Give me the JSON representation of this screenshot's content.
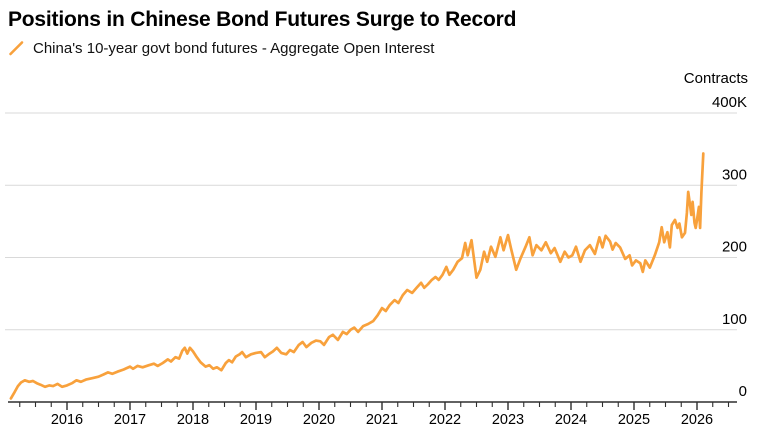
{
  "header": {
    "title": "Positions in Chinese Bond Futures Surge to Record"
  },
  "legend": {
    "label": "China's 10-year govt bond futures - Aggregate Open Interest",
    "mark_color": "#F8A13C"
  },
  "colors": {
    "line": "#F8A13C",
    "grid": "#D9D9D9",
    "axis": "#2E2E2E",
    "text": "#000000",
    "background": "#FFFFFF"
  },
  "chart_data": {
    "type": "line",
    "title": "Positions in Chinese Bond Futures Surge to Record",
    "unit_label": "Contracts",
    "ylabel": "Contracts",
    "y_range": [
      0,
      400
    ],
    "y_ticks": [
      {
        "value": 400,
        "label": "400K"
      },
      {
        "value": 300,
        "label": "300"
      },
      {
        "value": 200,
        "label": "200"
      },
      {
        "value": 100,
        "label": "100"
      },
      {
        "value": 0,
        "label": "0"
      }
    ],
    "x_year_labels": [
      "2016",
      "2017",
      "2018",
      "2019",
      "2020",
      "2021",
      "2022",
      "2023",
      "2024",
      "2025",
      "2026"
    ],
    "x_range_years": [
      2015.05,
      2026.6
    ],
    "grid": "horizontal-only",
    "legend_position": "top-left",
    "series": [
      {
        "name": "China's 10-year govt bond futures - Aggregate Open Interest",
        "color": "#F8A13C",
        "units": "thousands of contracts",
        "points": [
          [
            2015.11,
            5
          ],
          [
            2015.17,
            14
          ],
          [
            2015.22,
            22
          ],
          [
            2015.27,
            27
          ],
          [
            2015.33,
            30
          ],
          [
            2015.4,
            28
          ],
          [
            2015.46,
            29
          ],
          [
            2015.52,
            26
          ],
          [
            2015.58,
            24
          ],
          [
            2015.65,
            21
          ],
          [
            2015.72,
            23
          ],
          [
            2015.78,
            22
          ],
          [
            2015.85,
            25
          ],
          [
            2015.92,
            21
          ],
          [
            2016.0,
            23
          ],
          [
            2016.08,
            26
          ],
          [
            2016.15,
            30
          ],
          [
            2016.22,
            28
          ],
          [
            2016.3,
            31
          ],
          [
            2016.4,
            33
          ],
          [
            2016.5,
            35
          ],
          [
            2016.58,
            38
          ],
          [
            2016.65,
            41
          ],
          [
            2016.72,
            39
          ],
          [
            2016.8,
            42
          ],
          [
            2016.9,
            45
          ],
          [
            2017.0,
            49
          ],
          [
            2017.05,
            46
          ],
          [
            2017.12,
            50
          ],
          [
            2017.2,
            48
          ],
          [
            2017.3,
            51
          ],
          [
            2017.38,
            53
          ],
          [
            2017.44,
            50
          ],
          [
            2017.52,
            54
          ],
          [
            2017.6,
            59
          ],
          [
            2017.65,
            56
          ],
          [
            2017.72,
            62
          ],
          [
            2017.78,
            60
          ],
          [
            2017.83,
            71
          ],
          [
            2017.87,
            75
          ],
          [
            2017.91,
            67
          ],
          [
            2017.95,
            75
          ],
          [
            2018.0,
            70
          ],
          [
            2018.06,
            62
          ],
          [
            2018.12,
            55
          ],
          [
            2018.2,
            49
          ],
          [
            2018.26,
            51
          ],
          [
            2018.32,
            46
          ],
          [
            2018.38,
            48
          ],
          [
            2018.45,
            44
          ],
          [
            2018.52,
            54
          ],
          [
            2018.57,
            58
          ],
          [
            2018.62,
            55
          ],
          [
            2018.68,
            63
          ],
          [
            2018.74,
            66
          ],
          [
            2018.78,
            69
          ],
          [
            2018.84,
            62
          ],
          [
            2018.92,
            66
          ],
          [
            2019.0,
            68
          ],
          [
            2019.08,
            69
          ],
          [
            2019.14,
            62
          ],
          [
            2019.2,
            66
          ],
          [
            2019.27,
            70
          ],
          [
            2019.33,
            75
          ],
          [
            2019.4,
            68
          ],
          [
            2019.48,
            66
          ],
          [
            2019.54,
            72
          ],
          [
            2019.6,
            69
          ],
          [
            2019.68,
            79
          ],
          [
            2019.74,
            83
          ],
          [
            2019.8,
            76
          ],
          [
            2019.88,
            82
          ],
          [
            2019.95,
            85
          ],
          [
            2020.02,
            84
          ],
          [
            2020.08,
            79
          ],
          [
            2020.16,
            90
          ],
          [
            2020.22,
            93
          ],
          [
            2020.3,
            86
          ],
          [
            2020.38,
            97
          ],
          [
            2020.44,
            94
          ],
          [
            2020.5,
            100
          ],
          [
            2020.56,
            103
          ],
          [
            2020.62,
            97
          ],
          [
            2020.7,
            105
          ],
          [
            2020.78,
            108
          ],
          [
            2020.86,
            112
          ],
          [
            2020.93,
            120
          ],
          [
            2021.0,
            130
          ],
          [
            2021.06,
            126
          ],
          [
            2021.12,
            134
          ],
          [
            2021.2,
            141
          ],
          [
            2021.26,
            137
          ],
          [
            2021.33,
            148
          ],
          [
            2021.4,
            155
          ],
          [
            2021.48,
            151
          ],
          [
            2021.55,
            158
          ],
          [
            2021.62,
            165
          ],
          [
            2021.67,
            158
          ],
          [
            2021.73,
            163
          ],
          [
            2021.79,
            169
          ],
          [
            2021.85,
            173
          ],
          [
            2021.9,
            169
          ],
          [
            2021.96,
            176
          ],
          [
            2022.02,
            187
          ],
          [
            2022.07,
            176
          ],
          [
            2022.13,
            183
          ],
          [
            2022.2,
            194
          ],
          [
            2022.27,
            199
          ],
          [
            2022.32,
            220
          ],
          [
            2022.36,
            203
          ],
          [
            2022.42,
            224
          ],
          [
            2022.5,
            172
          ],
          [
            2022.56,
            183
          ],
          [
            2022.62,
            208
          ],
          [
            2022.67,
            194
          ],
          [
            2022.73,
            215
          ],
          [
            2022.8,
            201
          ],
          [
            2022.88,
            228
          ],
          [
            2022.93,
            210
          ],
          [
            2023.0,
            231
          ],
          [
            2023.05,
            212
          ],
          [
            2023.13,
            183
          ],
          [
            2023.2,
            199
          ],
          [
            2023.28,
            215
          ],
          [
            2023.34,
            228
          ],
          [
            2023.39,
            203
          ],
          [
            2023.45,
            217
          ],
          [
            2023.53,
            210
          ],
          [
            2023.6,
            221
          ],
          [
            2023.68,
            206
          ],
          [
            2023.74,
            213
          ],
          [
            2023.83,
            194
          ],
          [
            2023.9,
            208
          ],
          [
            2023.96,
            200
          ],
          [
            2024.02,
            203
          ],
          [
            2024.08,
            215
          ],
          [
            2024.15,
            194
          ],
          [
            2024.22,
            210
          ],
          [
            2024.3,
            217
          ],
          [
            2024.38,
            205
          ],
          [
            2024.45,
            228
          ],
          [
            2024.5,
            214
          ],
          [
            2024.55,
            230
          ],
          [
            2024.62,
            222
          ],
          [
            2024.66,
            211
          ],
          [
            2024.71,
            220
          ],
          [
            2024.78,
            214
          ],
          [
            2024.86,
            198
          ],
          [
            2024.93,
            203
          ],
          [
            2024.97,
            189
          ],
          [
            2025.03,
            196
          ],
          [
            2025.1,
            192
          ],
          [
            2025.14,
            180
          ],
          [
            2025.18,
            196
          ],
          [
            2025.25,
            186
          ],
          [
            2025.33,
            203
          ],
          [
            2025.4,
            221
          ],
          [
            2025.44,
            242
          ],
          [
            2025.48,
            221
          ],
          [
            2025.53,
            235
          ],
          [
            2025.57,
            214
          ],
          [
            2025.6,
            245
          ],
          [
            2025.65,
            252
          ],
          [
            2025.69,
            241
          ],
          [
            2025.72,
            247
          ],
          [
            2025.76,
            228
          ],
          [
            2025.81,
            234
          ],
          [
            2025.84,
            262
          ],
          [
            2025.86,
            291
          ],
          [
            2025.89,
            272
          ],
          [
            2025.91,
            259
          ],
          [
            2025.93,
            277
          ],
          [
            2025.96,
            248
          ],
          [
            2025.98,
            241
          ],
          [
            2026.0,
            252
          ],
          [
            2026.03,
            270
          ],
          [
            2026.05,
            241
          ],
          [
            2026.07,
            290
          ],
          [
            2026.1,
            344
          ]
        ]
      }
    ]
  }
}
